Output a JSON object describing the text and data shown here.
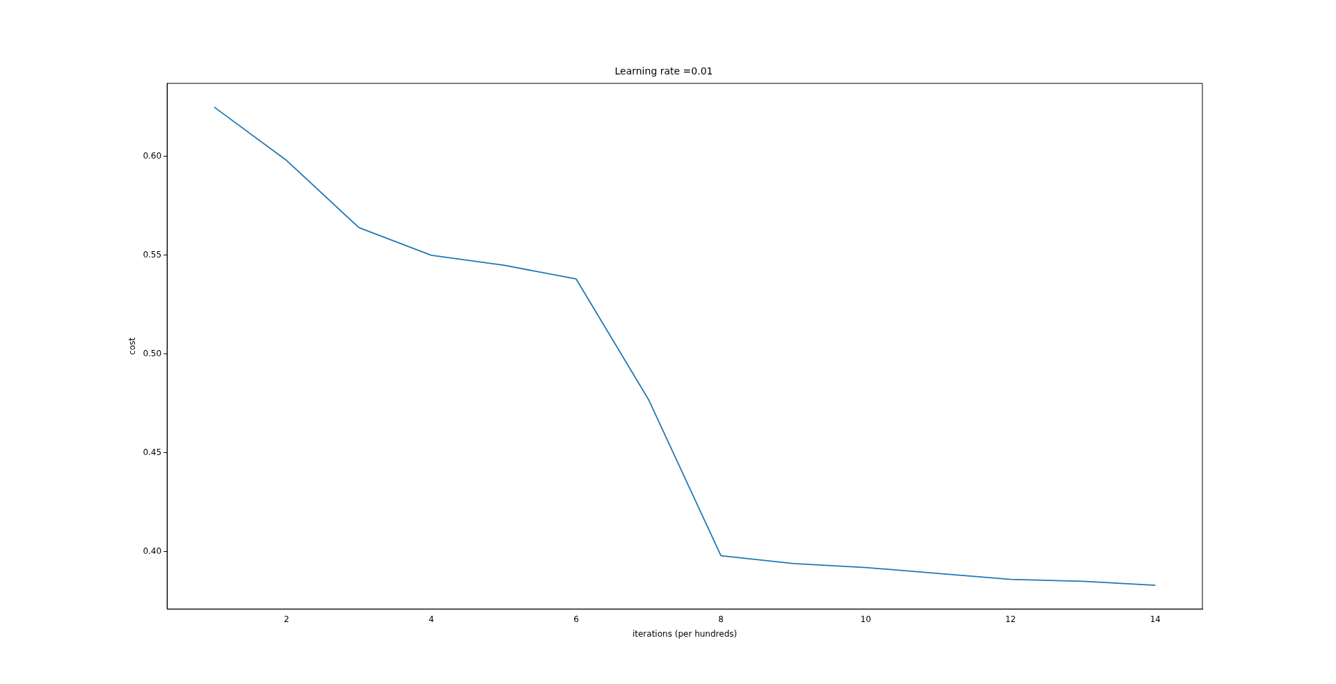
{
  "chart_data": {
    "type": "line",
    "title": "Learning rate =0.01",
    "xlabel": "iterations (per hundreds)",
    "ylabel": "cost",
    "x": [
      1,
      2,
      3,
      4,
      5,
      6,
      7,
      8,
      9,
      10,
      11,
      12,
      13,
      14
    ],
    "series": [
      {
        "color": "#1f77b4",
        "values": [
          0.625,
          0.598,
          0.564,
          0.55,
          0.545,
          0.538,
          0.477,
          0.398,
          0.394,
          0.392,
          0.389,
          0.386,
          0.385,
          0.383
        ]
      }
    ],
    "xlim": [
      0.35,
      14.65
    ],
    "xticks": [
      2,
      4,
      6,
      8,
      10,
      12,
      14
    ],
    "ylim": [
      0.371,
      0.637
    ],
    "yticks": [
      {
        "value": 0.4,
        "label": "0.40"
      },
      0.45,
      {
        "value": 0.5,
        "label": "0.50"
      },
      0.55,
      {
        "value": 0.6,
        "label": "0.60"
      }
    ],
    "grid": false,
    "legend": false,
    "marker": "none",
    "line_style": "solid"
  }
}
